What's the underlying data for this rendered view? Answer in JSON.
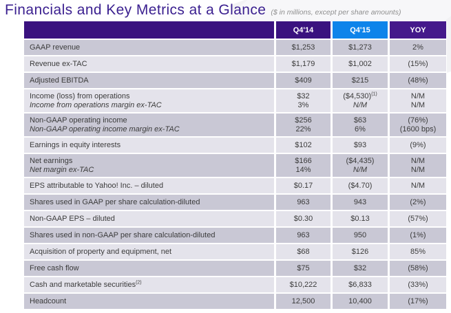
{
  "page": {
    "title": "Financials and Key Metrics at a Glance",
    "subtitle": "($ in millions, except per share amounts)"
  },
  "colors": {
    "title_purple": "#3a1f8f",
    "header_purple": "#3a127f",
    "header_highlight_blue": "#0e84ea",
    "row_dark": "#c9c8d5",
    "row_light": "#e4e3eb"
  },
  "table": {
    "columns": [
      "",
      "Q4'14",
      "Q4'15",
      "YOY"
    ],
    "highlight_column": "Q4'15",
    "rows": [
      {
        "label": "GAAP revenue",
        "q414": "$1,253",
        "q415": "$1,273",
        "yoy": "2%"
      },
      {
        "label": "Revenue ex-TAC",
        "q414": "$1,179",
        "q415": "$1,002",
        "yoy": "(15%)"
      },
      {
        "label": "Adjusted EBITDA",
        "q414": "$409",
        "q415": "$215",
        "yoy": "(48%)"
      },
      {
        "label": "Income (loss) from operations",
        "sublabel": "Income from operations margin ex-TAC",
        "q414": "$32",
        "q414_sub": "3%",
        "q415": "($4,530)",
        "q415_sup": "(1)",
        "q415_sub": "N/M",
        "q415_sub_italic": true,
        "yoy": "N/M",
        "yoy_sub": "N/M"
      },
      {
        "label": "Non-GAAP operating income",
        "sublabel": "Non-GAAP operating income margin ex-TAC",
        "q414": "$256",
        "q414_sub": "22%",
        "q415": "$63",
        "q415_sub": "6%",
        "yoy": "(76%)",
        "yoy_sub": "(1600 bps)"
      },
      {
        "label": "Earnings in equity interests",
        "q414": "$102",
        "q415": "$93",
        "yoy": "(9%)"
      },
      {
        "label": "Net earnings",
        "sublabel": "Net margin ex-TAC",
        "q414": "$166",
        "q414_sub": "14%",
        "q415": "($4,435)",
        "q415_sub": "N/M",
        "q415_sub_italic": true,
        "yoy": "N/M",
        "yoy_sub": "N/M"
      },
      {
        "label": "EPS attributable to Yahoo! Inc. – diluted",
        "q414": "$0.17",
        "q415": "($4.70)",
        "yoy": "N/M"
      },
      {
        "label": "Shares used in GAAP per share calculation-diluted",
        "q414": "963",
        "q415": "943",
        "yoy": "(2%)"
      },
      {
        "label": "Non-GAAP EPS – diluted",
        "q414": "$0.30",
        "q415": "$0.13",
        "yoy": "(57%)"
      },
      {
        "label": "Shares used in non-GAAP per share calculation-diluted",
        "q414": "963",
        "q415": "950",
        "yoy": "(1%)"
      },
      {
        "label": "Acquisition of property and equipment, net",
        "q414": "$68",
        "q415": "$126",
        "yoy": "85%"
      },
      {
        "label": "Free cash flow",
        "q414": "$75",
        "q415": "$32",
        "yoy": "(58%)"
      },
      {
        "label": "Cash and marketable securities",
        "label_sup": "(2)",
        "q414": "$10,222",
        "q415": "$6,833",
        "yoy": "(33%)"
      },
      {
        "label": "Headcount",
        "q414": "12,500",
        "q415": "10,400",
        "yoy": "(17%)"
      }
    ]
  }
}
